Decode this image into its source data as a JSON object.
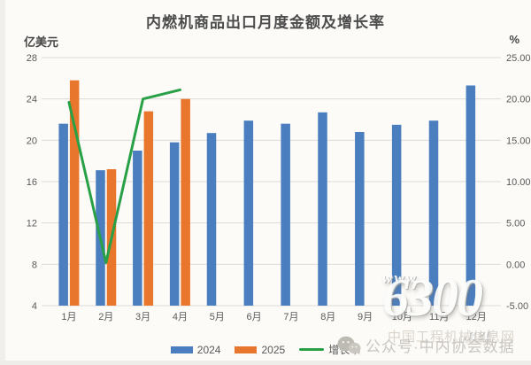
{
  "page": {
    "background": "#fcfbf8"
  },
  "chart_data": {
    "type": "bar",
    "title": "内燃机商品出口月度金额及增长率",
    "left_axis": {
      "unit": "亿美元",
      "min": 4,
      "max": 28,
      "step": 4,
      "ticks": [
        28,
        24,
        20,
        16,
        12,
        8,
        4
      ],
      "tick_labels": [
        "28",
        "24",
        "20",
        "16",
        "12",
        "8",
        "4"
      ]
    },
    "right_axis": {
      "unit": "%",
      "min": -5,
      "max": 25,
      "step": 5,
      "ticks": [
        25,
        20,
        15,
        10,
        5,
        0,
        -5
      ],
      "tick_labels": [
        "25.00",
        "20.00",
        "15.00",
        "10.00",
        "5.00",
        "0.00",
        "-5.00"
      ]
    },
    "categories": [
      "1月",
      "2月",
      "3月",
      "4月",
      "5月",
      "6月",
      "7月",
      "8月",
      "9月",
      "10月",
      "11月",
      "12月"
    ],
    "series": [
      {
        "name": "2024",
        "type": "bar",
        "axis": "left",
        "color": "#4a7ebe",
        "values": [
          21.6,
          17.1,
          19.0,
          19.8,
          20.7,
          21.9,
          21.6,
          22.7,
          20.8,
          21.5,
          21.9,
          25.3
        ]
      },
      {
        "name": "2025",
        "type": "bar",
        "axis": "left",
        "color": "#e8762c",
        "values": [
          25.8,
          17.2,
          22.8,
          24.0,
          null,
          null,
          null,
          null,
          null,
          null,
          null,
          null
        ]
      },
      {
        "name": "增长率",
        "type": "line",
        "axis": "right",
        "color": "#28a046",
        "values": [
          19.6,
          0.2,
          20.0,
          21.1,
          null,
          null,
          null,
          null,
          null,
          null,
          null,
          null
        ]
      }
    ],
    "grid": true,
    "gridline_color": "#dcdbd7",
    "legend_position": "bottom"
  },
  "watermarks": {
    "site_www": "www.",
    "site_number": "6300",
    "site_net": ".net",
    "faint_text": "中国工程机械信息网",
    "wechat_text": "公众号·中内协会数据"
  }
}
